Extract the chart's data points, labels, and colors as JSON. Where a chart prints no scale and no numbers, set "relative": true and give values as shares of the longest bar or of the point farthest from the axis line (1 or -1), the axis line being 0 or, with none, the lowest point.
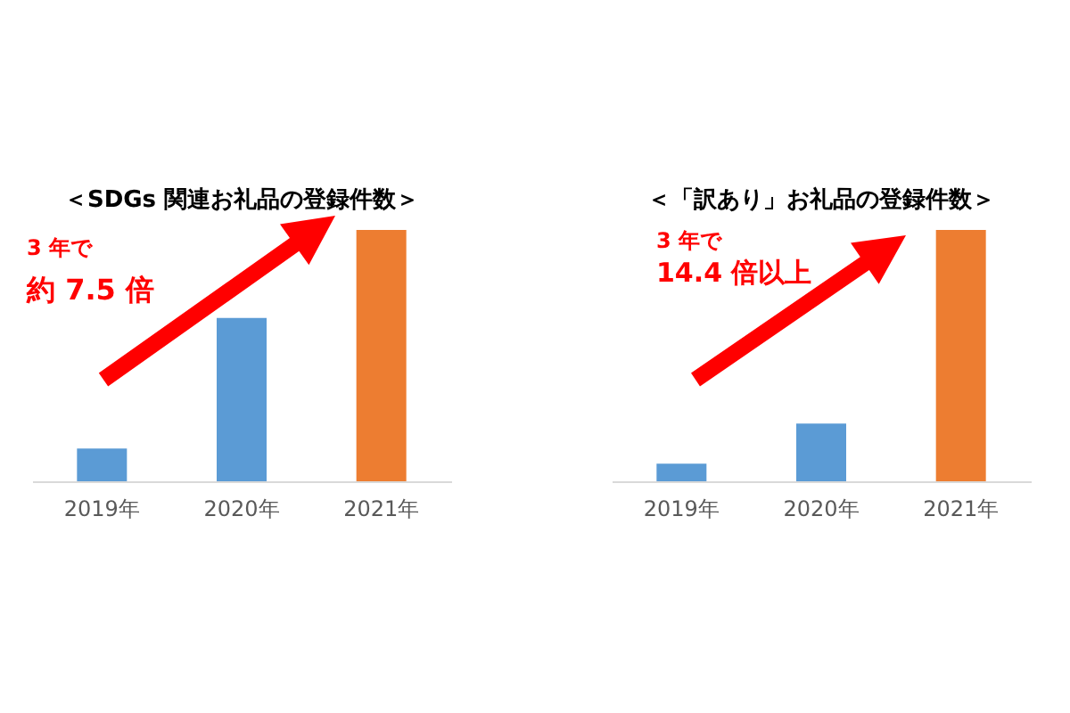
{
  "chart_data": [
    {
      "type": "bar",
      "title": "＜SDGs 関連お礼品の登録件数＞",
      "categories": [
        "2019年",
        "2020年",
        "2021年"
      ],
      "values": [
        0.13,
        0.65,
        1
      ],
      "colors": [
        "#5b9bd5",
        "#5b9bd5",
        "#ed7d31"
      ],
      "relative": true,
      "annotations": [
        "3 年で",
        "約 7.5 倍"
      ]
    },
    {
      "type": "bar",
      "title": "＜「訳あり」お礼品の登録件数＞",
      "categories": [
        "2019年",
        "2020年",
        "2021年"
      ],
      "values": [
        0.07,
        0.23,
        1
      ],
      "colors": [
        "#5b9bd5",
        "#5b9bd5",
        "#ed7d31"
      ],
      "relative": true,
      "annotations": [
        "3 年で",
        "14.4 倍以上"
      ]
    }
  ]
}
